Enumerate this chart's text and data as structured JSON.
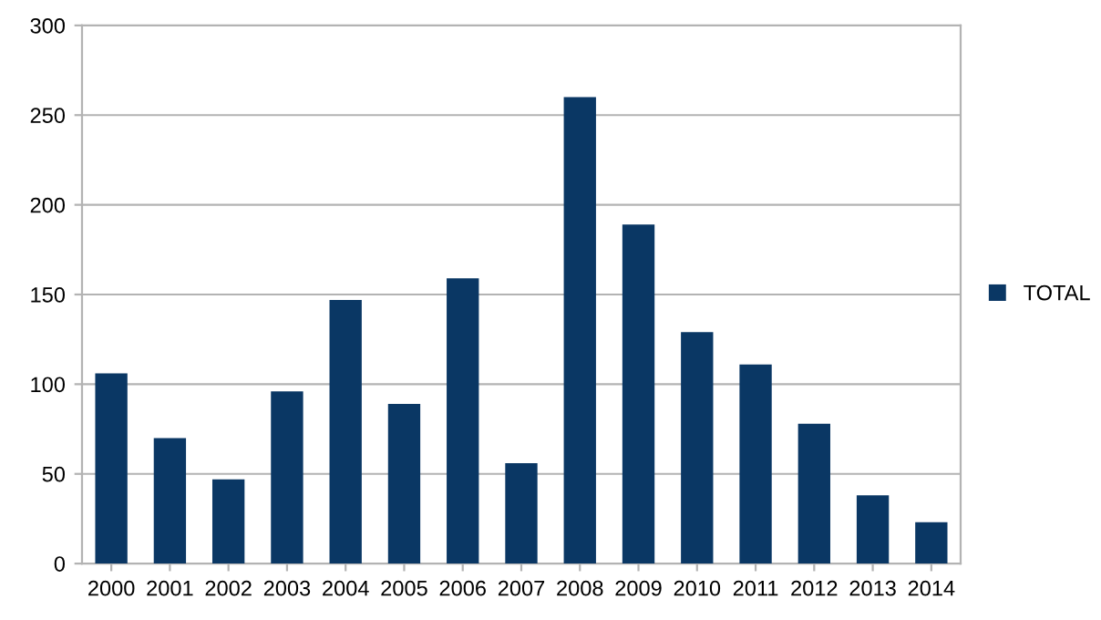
{
  "chart_data": {
    "type": "bar",
    "categories": [
      "2000",
      "2001",
      "2002",
      "2003",
      "2004",
      "2005",
      "2006",
      "2007",
      "2008",
      "2009",
      "2010",
      "2011",
      "2012",
      "2013",
      "2014"
    ],
    "series": [
      {
        "name": "TOTAL",
        "color": "#0a3764",
        "values": [
          106,
          70,
          47,
          96,
          147,
          89,
          159,
          56,
          260,
          189,
          129,
          111,
          78,
          38,
          23
        ]
      }
    ],
    "ylim": [
      0,
      300
    ],
    "yticks": [
      0,
      50,
      100,
      150,
      200,
      250,
      300
    ],
    "grid": "y",
    "legend": "right"
  }
}
